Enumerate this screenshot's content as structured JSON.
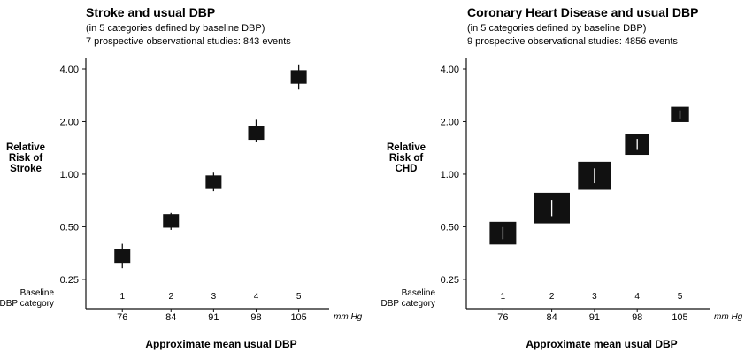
{
  "chart_data": [
    {
      "type": "scatter",
      "title": "Stroke and usual DBP",
      "subtitle_1": "(in 5 categories defined by baseline DBP)",
      "subtitle_2": "7 prospective observational studies: 843 events",
      "ylabel_lines": [
        "Relative",
        "Risk of",
        "Stroke"
      ],
      "xlabel": "Approximate mean usual DBP",
      "x_unit": "mm Hg",
      "category_label_lines": [
        "Baseline",
        "DBP category"
      ],
      "categories": [
        "1",
        "2",
        "3",
        "4",
        "5"
      ],
      "x": [
        76,
        84,
        91,
        98,
        105
      ],
      "x_tick_labels": [
        "76",
        "84",
        "91",
        "98",
        "105"
      ],
      "y_scale": "log",
      "y_ticks": [
        0.25,
        0.5,
        1.0,
        2.0,
        4.0
      ],
      "y_tick_labels": [
        "0.25",
        "0.50",
        "1.00",
        "2.00",
        "4.00"
      ],
      "ylim": [
        0.17,
        4.6
      ],
      "xlim": [
        70,
        110
      ],
      "grid": false,
      "values": [
        0.34,
        0.54,
        0.9,
        1.72,
        3.6
      ],
      "ci_low": [
        0.29,
        0.48,
        0.8,
        1.53,
        3.05
      ],
      "ci_high": [
        0.4,
        0.6,
        1.02,
        2.05,
        4.25
      ],
      "marker_relative_size": [
        1,
        1,
        1,
        1,
        1
      ]
    },
    {
      "type": "scatter",
      "title": "Coronary Heart Disease and usual DBP",
      "subtitle_1": "(in 5 categories defined by baseline DBP)",
      "subtitle_2": "9 prospective observational studies: 4856 events",
      "ylabel_lines": [
        "Relative",
        "Risk of",
        "CHD"
      ],
      "xlabel": "Approximate mean usual DBP",
      "x_unit": "mm Hg",
      "category_label_lines": [
        "Baseline",
        "DBP category"
      ],
      "categories": [
        "1",
        "2",
        "3",
        "4",
        "5"
      ],
      "x": [
        76,
        84,
        91,
        98,
        105
      ],
      "x_tick_labels": [
        "76",
        "84",
        "91",
        "98",
        "105"
      ],
      "y_scale": "log",
      "y_ticks": [
        0.25,
        0.5,
        1.0,
        2.0,
        4.0
      ],
      "y_tick_labels": [
        "0.25",
        "0.50",
        "1.00",
        "2.00",
        "4.00"
      ],
      "ylim": [
        0.17,
        4.6
      ],
      "xlim": [
        70,
        110
      ],
      "grid": false,
      "values": [
        0.46,
        0.64,
        0.98,
        1.48,
        2.2
      ],
      "ci_low": [
        0.43,
        0.61,
        0.93,
        1.39,
        2.02
      ],
      "ci_high": [
        0.49,
        0.68,
        1.03,
        1.57,
        2.4
      ],
      "marker_relative_size": [
        1.25,
        1.7,
        1.55,
        1.15,
        0.85
      ]
    }
  ]
}
